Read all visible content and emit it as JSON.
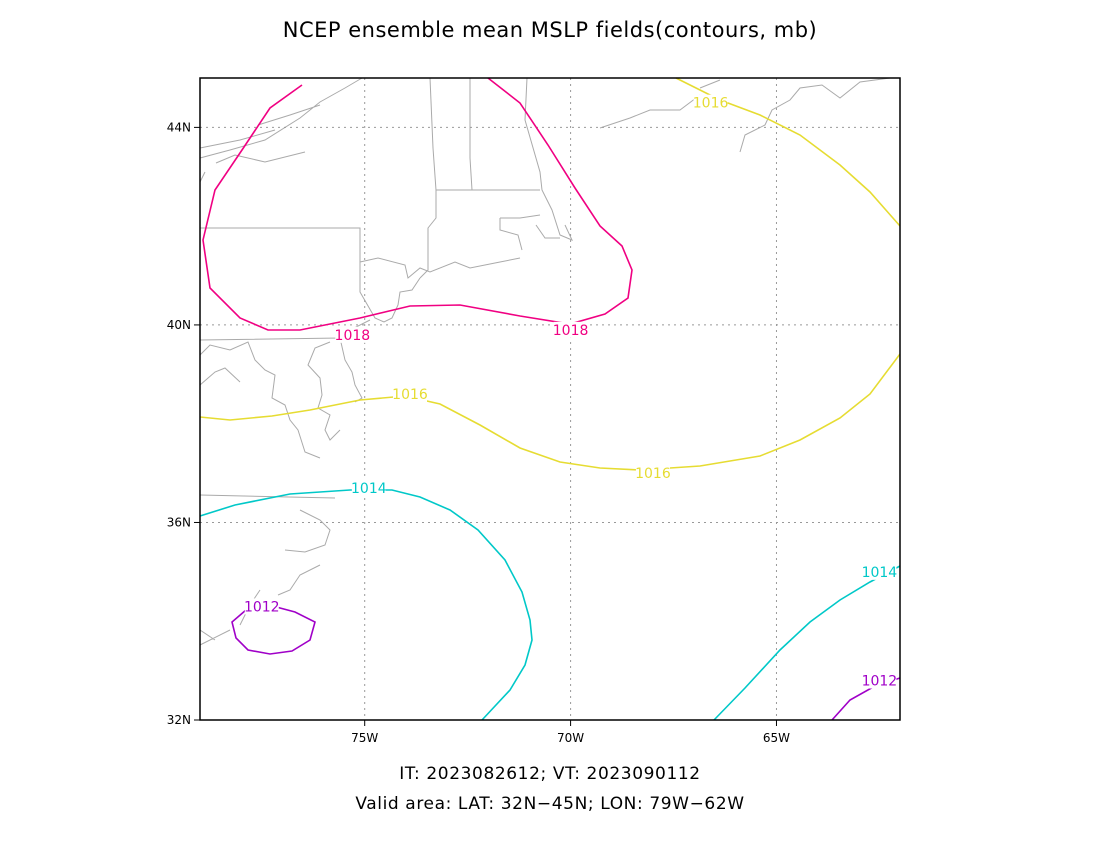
{
  "title": "NCEP ensemble mean MSLP fields(contours, mb)",
  "footer": {
    "times": "IT: 2023082612; VT: 2023090112",
    "area": "Valid area: LAT: 32N−45N; LON: 79W−62W"
  },
  "map": {
    "lon_range": [
      -79,
      -62
    ],
    "lat_range": [
      32,
      45
    ],
    "lat_ticks": [
      {
        "value": 32,
        "label": "32N"
      },
      {
        "value": 36,
        "label": "36N"
      },
      {
        "value": 40,
        "label": "40N"
      },
      {
        "value": 44,
        "label": "44N"
      }
    ],
    "lon_ticks": [
      {
        "value": -75,
        "label": "75W"
      },
      {
        "value": -70,
        "label": "70W"
      },
      {
        "value": -65,
        "label": "65W"
      }
    ],
    "grid": "dotted",
    "colors": {
      "1012": "#a000c8",
      "1014": "#00c8c8",
      "1016": "#e6dc32",
      "1018": "#f00082",
      "coastline": "#aaaaaa",
      "grid": "#999999"
    },
    "contour_labels": [
      {
        "text": "1018",
        "color_key": "1018",
        "lon": -75.3,
        "lat": 39.8
      },
      {
        "text": "1018",
        "color_key": "1018",
        "lon": -70.0,
        "lat": 39.9
      },
      {
        "text": "1016",
        "color_key": "1016",
        "lon": -66.6,
        "lat": 44.5
      },
      {
        "text": "1016",
        "color_key": "1016",
        "lon": -73.9,
        "lat": 38.6
      },
      {
        "text": "1016",
        "color_key": "1016",
        "lon": -68.0,
        "lat": 37.0
      },
      {
        "text": "1014",
        "color_key": "1014",
        "lon": -74.9,
        "lat": 36.7
      },
      {
        "text": "1014",
        "color_key": "1014",
        "lon": -62.5,
        "lat": 35.0
      },
      {
        "text": "1012",
        "color_key": "1012",
        "lon": -77.5,
        "lat": 34.3
      },
      {
        "text": "1012",
        "color_key": "1012",
        "lon": -62.5,
        "lat": 32.8
      }
    ]
  }
}
